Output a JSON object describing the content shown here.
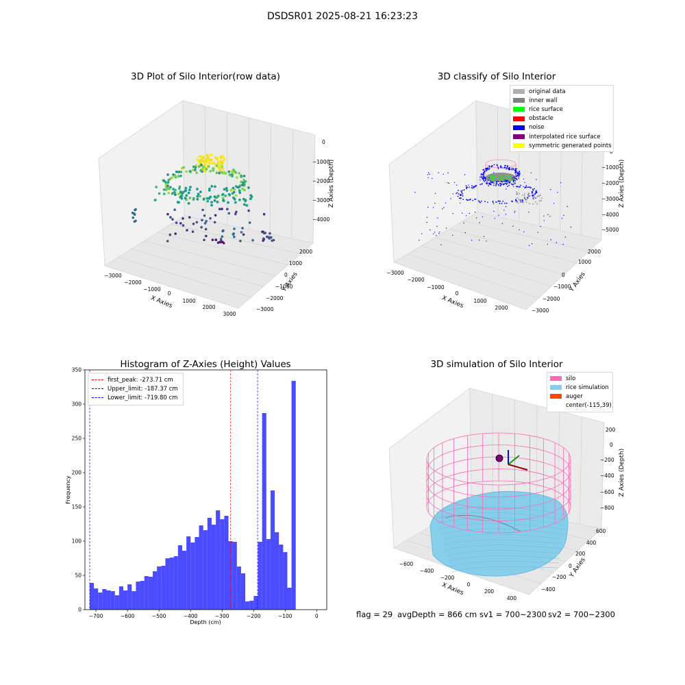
{
  "header": {
    "title": "DSDSR01 2025-08-21 16:23:23"
  },
  "colors": {
    "background": "#ffffff",
    "pane": "#f2f2f2",
    "grid": "#d6d6d6",
    "histogram_bar": "#4b4bff",
    "peak_line": "#ff0000",
    "limit_line": "#0000ff",
    "silo": "#ff69b4",
    "rice_simulation": "#87ceeb",
    "auger": "#ff4500",
    "inner_wall": "#808080",
    "rice_surface": "#00ff00",
    "noise": "#0000ff"
  },
  "panels": {
    "raw": {
      "title": "3D Plot of Silo Interior(row data)",
      "x_label": "X Axies",
      "y_label": "Y Axies",
      "z_label": "Z Axies (Depth)",
      "x_ticks": [
        "−3000",
        "−2000",
        "−1000",
        "0",
        "1000",
        "2000",
        "3000"
      ],
      "y_ticks": [
        "−3000",
        "−2000",
        "−1000",
        "0",
        "1000",
        "2000"
      ],
      "z_ticks": [
        "−4000",
        "−3000",
        "−2000",
        "−1000",
        "0"
      ]
    },
    "classify": {
      "title": "3D classify of Silo Interior",
      "x_label": "X Axies",
      "y_label": "Y Axies",
      "z_label": "Z Axies (Depth)",
      "x_ticks": [
        "−3000",
        "−2000",
        "−1000",
        "0",
        "1000",
        "2000"
      ],
      "y_ticks": [
        "−3000",
        "−2000",
        "−1000",
        "0",
        "1000",
        "2000"
      ],
      "z_ticks": [
        "−5000",
        "−4000",
        "−3000",
        "−2000",
        "−1000",
        "0"
      ],
      "legend": [
        {
          "label": "original data",
          "color": "#b0b0b0"
        },
        {
          "label": "inner wall",
          "color": "#808080"
        },
        {
          "label": "rice surface",
          "color": "#00ff00"
        },
        {
          "label": "obstacle",
          "color": "#ff0000"
        },
        {
          "label": "noise",
          "color": "#0000ff"
        },
        {
          "label": "interpolated rice surface",
          "color": "#800080"
        },
        {
          "label": "symmetric generated points",
          "color": "#ffff00"
        }
      ]
    },
    "simulation": {
      "title": "3D simulation of Silo Interior",
      "x_label": "X Axies",
      "y_label": "Y Axies",
      "z_label": "Z Axies (Depth)",
      "x_ticks": [
        "−600",
        "−400",
        "−200",
        "0",
        "200",
        "400"
      ],
      "y_ticks": [
        "−400",
        "−200",
        "0",
        "200",
        "400",
        "600"
      ],
      "z_ticks": [
        "−800",
        "−600",
        "−400",
        "−200",
        "0",
        "200"
      ],
      "legend": [
        {
          "label": "silo",
          "color": "#ff69b4"
        },
        {
          "label": "rice simulation",
          "color": "#87ceeb"
        },
        {
          "label": "auger",
          "color": "#ff4500"
        },
        {
          "label": "center(-115,39)",
          "color": ""
        }
      ]
    }
  },
  "chart_data": [
    {
      "type": "bar",
      "title": "Histogram of Z-Axies (Height) Values",
      "xlabel": "Depth (cm)",
      "ylabel": "Frequency",
      "xlim": [
        -735,
        32
      ],
      "ylim": [
        0,
        350
      ],
      "x_ticks": [
        "−700",
        "−600",
        "−500",
        "−400",
        "−300",
        "−200",
        "−100",
        "0"
      ],
      "y_ticks": [
        "0",
        "50",
        "100",
        "150",
        "200",
        "250",
        "300",
        "350"
      ],
      "bin_start": -720,
      "bin_width": 13.34,
      "values": [
        39,
        31,
        25,
        30,
        28,
        27,
        21,
        34,
        28,
        37,
        27,
        41,
        42,
        49,
        48,
        56,
        63,
        64,
        75,
        76,
        78,
        94,
        86,
        107,
        98,
        106,
        123,
        116,
        134,
        124,
        145,
        132,
        137,
        100,
        99,
        63,
        53,
        12,
        13,
        20,
        99,
        287,
        103,
        174,
        113,
        95,
        84,
        32,
        334
      ],
      "vlines": [
        {
          "x": -273.71,
          "label": "first_peak: -273.71 cm",
          "color": "#ff0000"
        },
        {
          "x": -187.37,
          "label": "Upper_limit: -187.37 cm",
          "color": "#0000ff"
        },
        {
          "x": -719.8,
          "label": "Lower_limit: -719.80 cm",
          "color": "#0000ff"
        }
      ],
      "legend_position": "upper-left"
    }
  ],
  "footer": {
    "flag": "flag = 29",
    "avg_depth": "avgDepth = 866 cm",
    "sv1": "sv1 = 700~2300",
    "sv2": "sv2 = 700~2300"
  }
}
